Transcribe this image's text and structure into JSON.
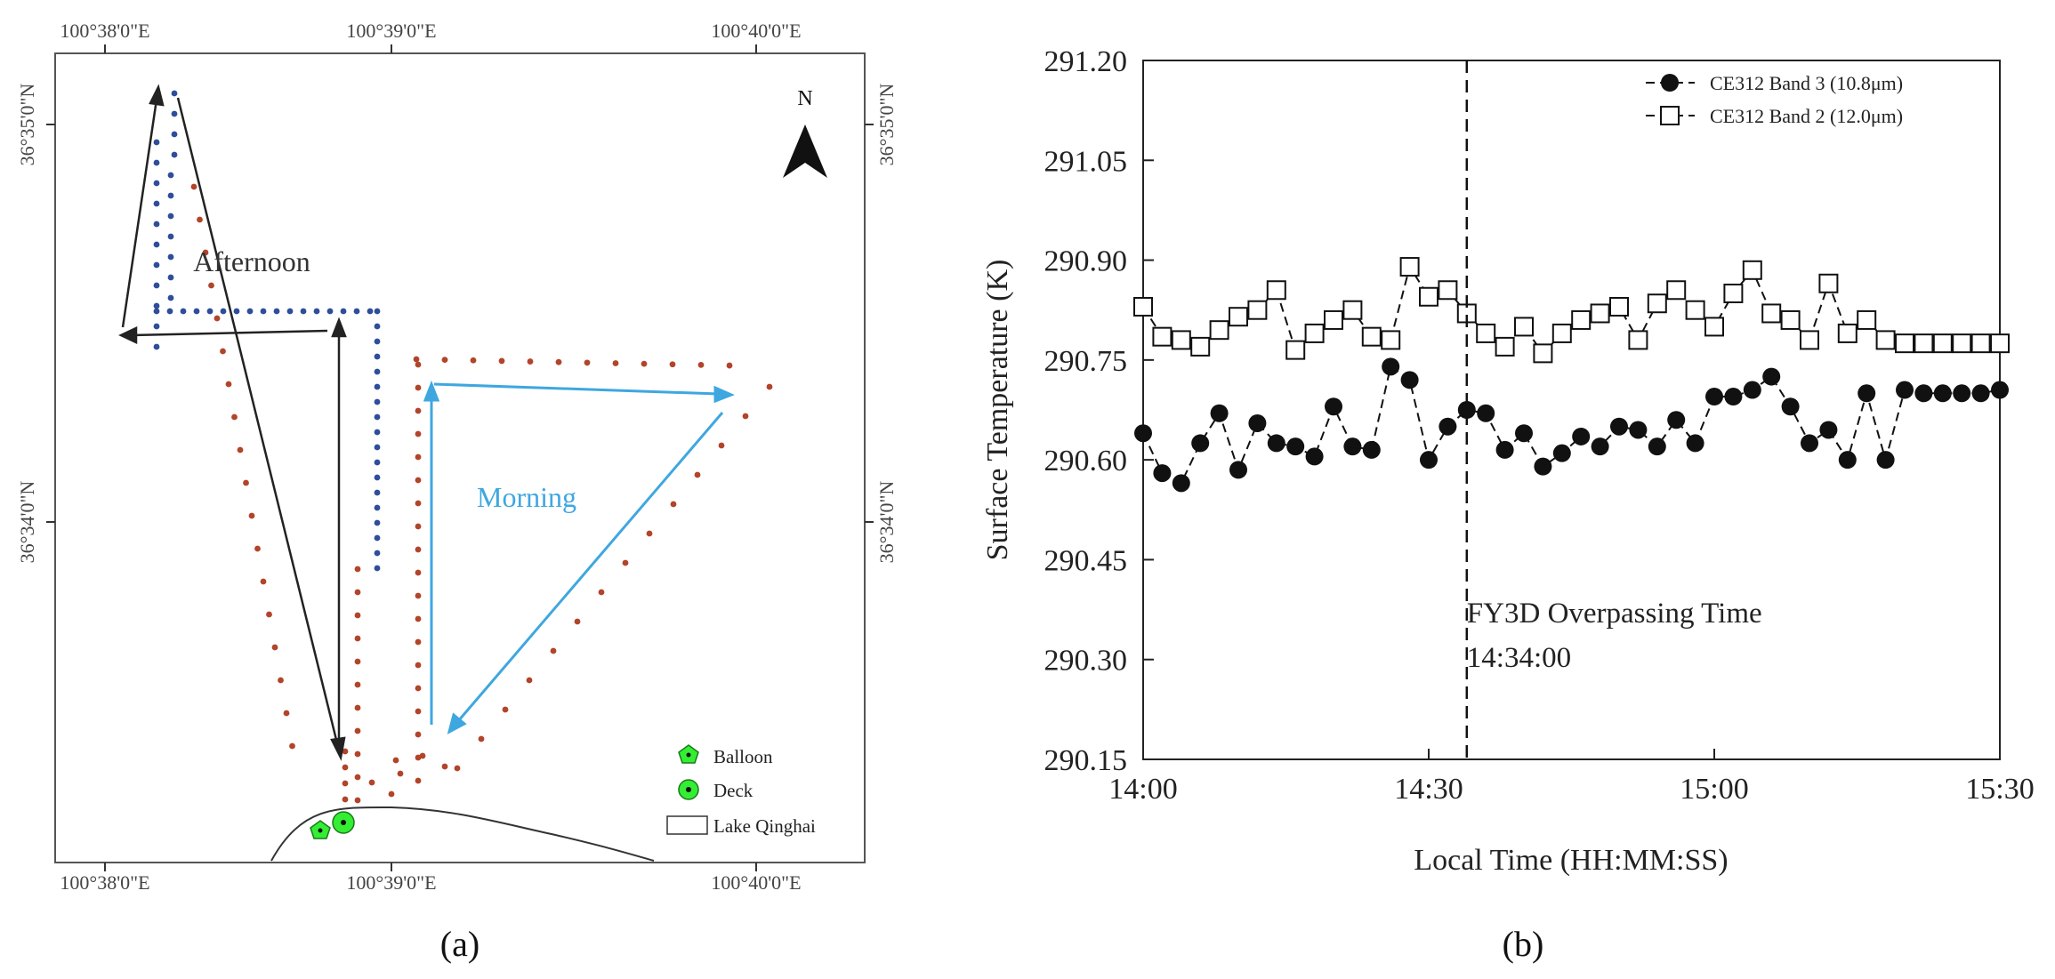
{
  "map": {
    "lon_labels": [
      "100°38'0\"E",
      "100°39'0\"E",
      "100°40'0\"E"
    ],
    "lat_labels": [
      "36°35'0\"N",
      "36°34'0\"N"
    ],
    "north_label": "N",
    "afternoon_label": "Afternoon",
    "morning_label": "Morning",
    "legend": {
      "balloon": "Balloon",
      "deck": "Deck",
      "lake": "Lake Qinghai"
    },
    "colors": {
      "afternoon_points": "#2e4d9b",
      "morning_points": "#b2442a",
      "morning_arrow": "#3ea7e0",
      "marker_green": "#33ee33"
    },
    "caption": "(a)"
  },
  "chart_data": {
    "type": "scatter",
    "title": "",
    "xlabel": "Local Time (HH:MM:SS)",
    "ylabel": "Surface Temperature (K)",
    "xlim": [
      0,
      90
    ],
    "ylim": [
      290.15,
      291.2
    ],
    "x_ticks": [
      0,
      30,
      60,
      90
    ],
    "x_tick_labels": [
      "14:00",
      "14:30",
      "15:00",
      "15:30"
    ],
    "y_ticks": [
      290.15,
      290.3,
      290.45,
      290.6,
      290.75,
      290.9,
      291.05,
      291.2
    ],
    "y_tick_labels": [
      "290.15",
      "290.30",
      "290.45",
      "290.60",
      "290.75",
      "290.90",
      "291.05",
      "291.20"
    ],
    "legend_position": "top-right",
    "series": [
      {
        "name": "CE312 Band 3 (10.8μm)",
        "marker": "filled-circle",
        "x": [
          0,
          2,
          4,
          6,
          8,
          10,
          12,
          14,
          16,
          18,
          20,
          22,
          24,
          26,
          28,
          30,
          32,
          34,
          36,
          38,
          40,
          42,
          44,
          46,
          48,
          50,
          52,
          54,
          56,
          58,
          60,
          62,
          64,
          66,
          68,
          70,
          72,
          74,
          76,
          78,
          80,
          82,
          84,
          86,
          88,
          90
        ],
        "values": [
          290.64,
          290.58,
          290.565,
          290.625,
          290.67,
          290.585,
          290.655,
          290.625,
          290.62,
          290.605,
          290.68,
          290.62,
          290.615,
          290.74,
          290.72,
          290.6,
          290.65,
          290.675,
          290.67,
          290.615,
          290.64,
          290.59,
          290.61,
          290.635,
          290.62,
          290.65,
          290.645,
          290.62,
          290.66,
          290.625,
          290.695,
          290.695,
          290.705,
          290.725,
          290.68,
          290.625,
          290.645,
          290.6,
          290.7,
          290.6,
          290.705,
          290.7,
          290.7,
          290.7,
          290.7,
          290.705
        ]
      },
      {
        "name": "CE312 Band 2 (12.0μm)",
        "marker": "open-square",
        "x": [
          0,
          2,
          4,
          6,
          8,
          10,
          12,
          14,
          16,
          18,
          20,
          22,
          24,
          26,
          28,
          30,
          32,
          34,
          36,
          38,
          40,
          42,
          44,
          46,
          48,
          50,
          52,
          54,
          56,
          58,
          60,
          62,
          64,
          66,
          68,
          70,
          72,
          74,
          76,
          78,
          80,
          82,
          84,
          86,
          88,
          90
        ],
        "values": [
          290.83,
          290.785,
          290.78,
          290.77,
          290.795,
          290.815,
          290.825,
          290.855,
          290.765,
          290.79,
          290.81,
          290.825,
          290.785,
          290.78,
          290.89,
          290.845,
          290.855,
          290.82,
          290.79,
          290.77,
          290.8,
          290.76,
          290.79,
          290.81,
          290.82,
          290.83,
          290.78,
          290.835,
          290.855,
          290.825,
          290.8,
          290.85,
          290.885,
          290.82,
          290.81,
          290.78,
          290.865,
          290.79,
          290.81,
          290.78,
          290.775,
          290.775,
          290.775,
          290.775,
          290.775,
          290.775
        ]
      }
    ],
    "vline": {
      "x": 34,
      "label": "FY3D Overpassing Time",
      "time": "14:34:00"
    },
    "caption": "(b)"
  }
}
